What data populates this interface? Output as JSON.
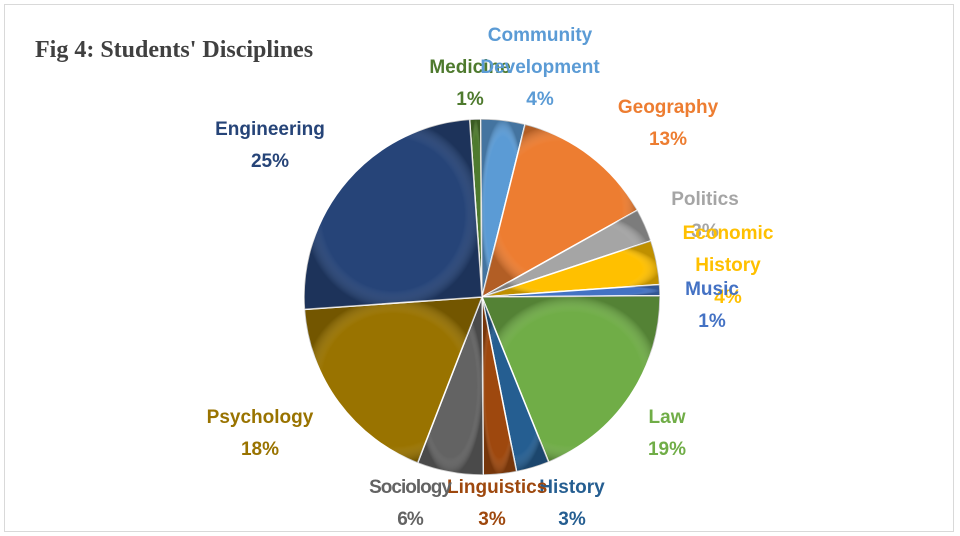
{
  "chart_data": {
    "type": "pie",
    "title": "Fig 4: Students' Disciplines",
    "categories": [
      "Medicine",
      "Community Development",
      "Geography",
      "Politics",
      "Economic History",
      "Music",
      "Law",
      "History",
      "Linguistics",
      "Sociology",
      "Psychology",
      "Engineering"
    ],
    "values": [
      1,
      4,
      13,
      3,
      4,
      1,
      19,
      3,
      3,
      6,
      18,
      25
    ],
    "value_labels": [
      "1%",
      "4%",
      "13%",
      "3%",
      "4%",
      "1%",
      "19%",
      "3%",
      "3%",
      "6%",
      "18%",
      "25%"
    ],
    "colors": [
      "#4e7a2e",
      "#5b9bd5",
      "#ed7d31",
      "#a5a5a5",
      "#ffc000",
      "#4472c4",
      "#70ad47",
      "#255e91",
      "#9e480e",
      "#636363",
      "#997300",
      "#264478"
    ]
  }
}
